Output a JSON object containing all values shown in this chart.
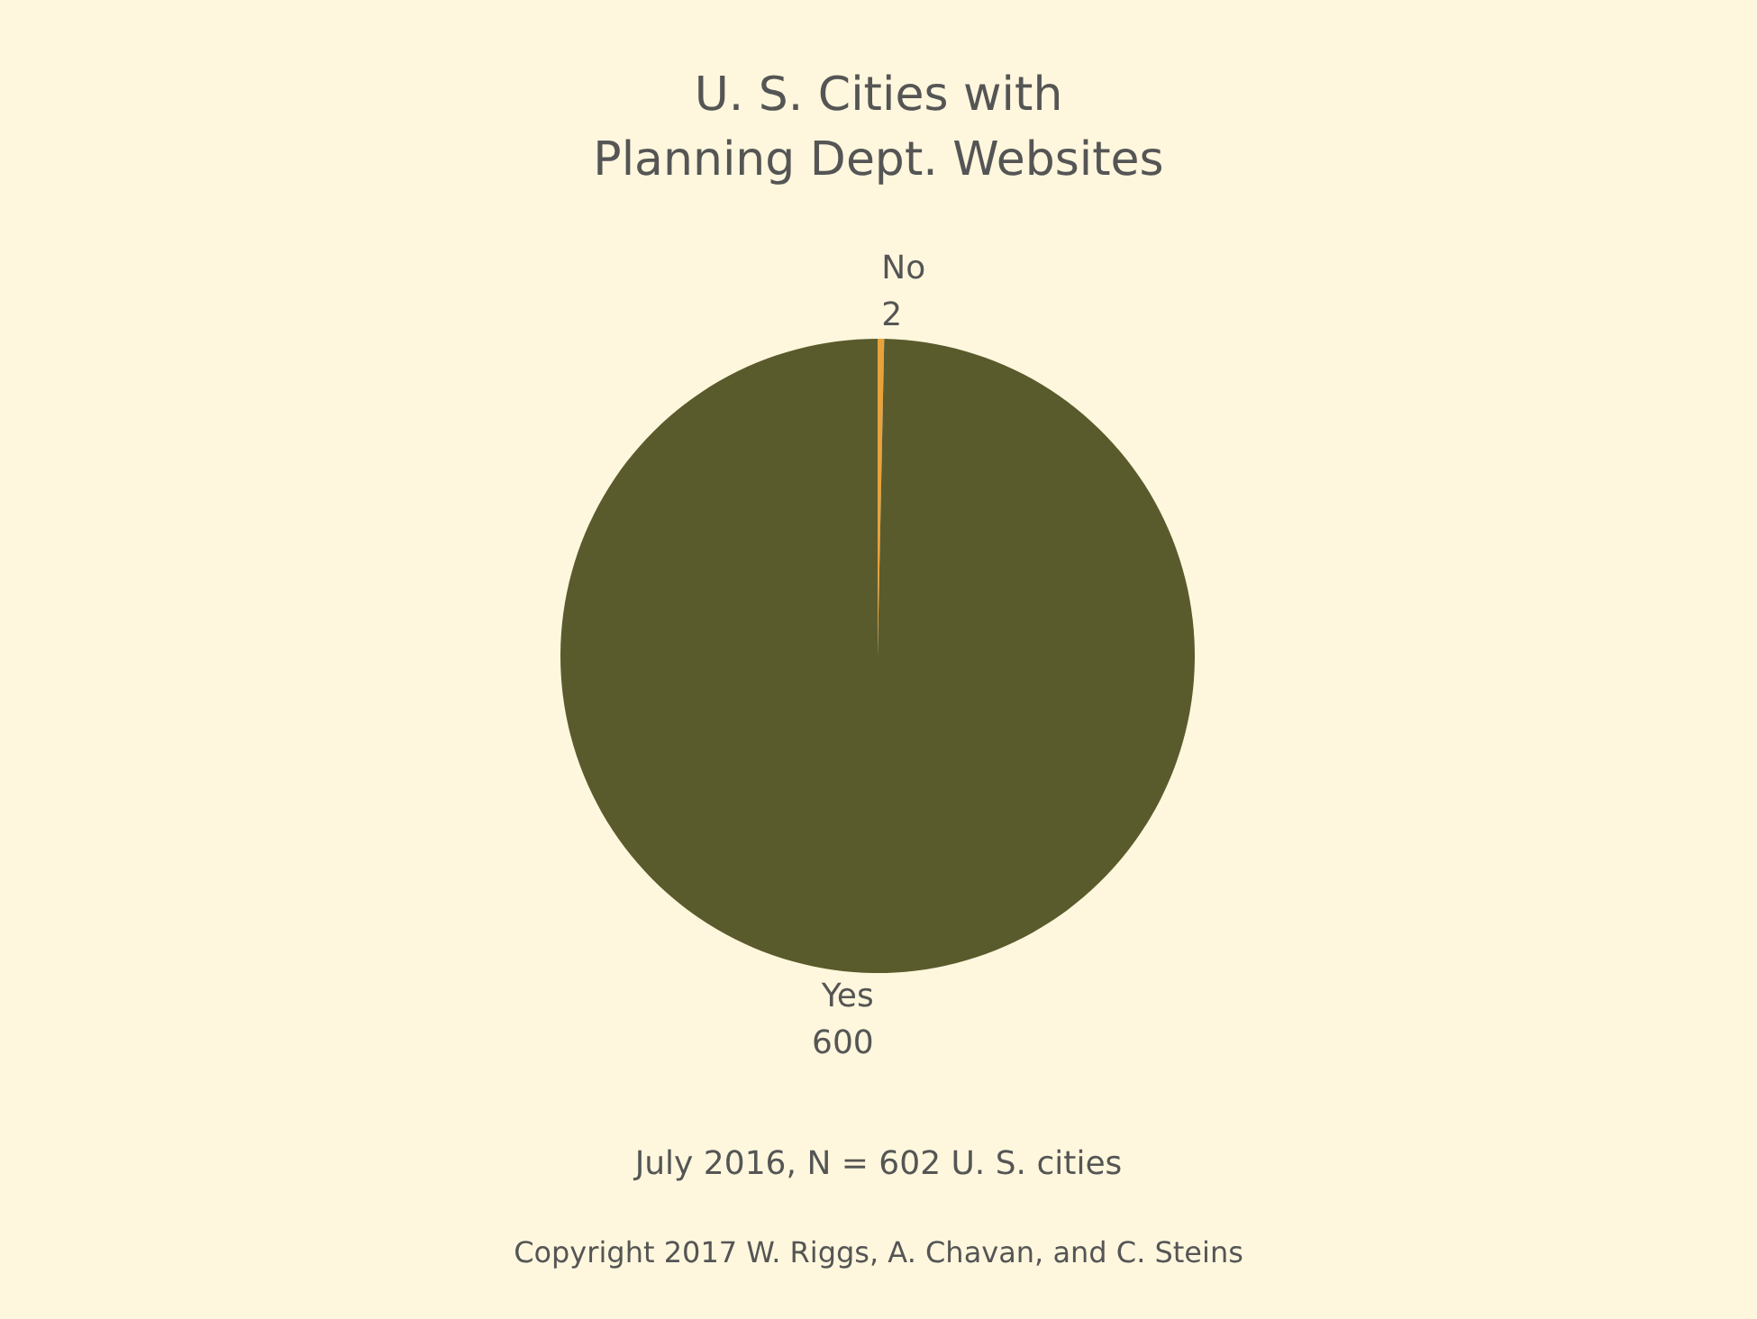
{
  "chart_data": {
    "type": "pie",
    "title": "U. S. Cities with\nPlanning Dept. Websites",
    "categories": [
      "No",
      "Yes"
    ],
    "values": [
      2,
      600
    ],
    "colors": [
      "#e9a23b",
      "#5a5b2c"
    ],
    "data_labels": true,
    "annotations": [
      "July 2016, N = 602 U. S. cities",
      "Copyright 2017 W. Riggs, A. Chavan, and C. Steins"
    ]
  }
}
